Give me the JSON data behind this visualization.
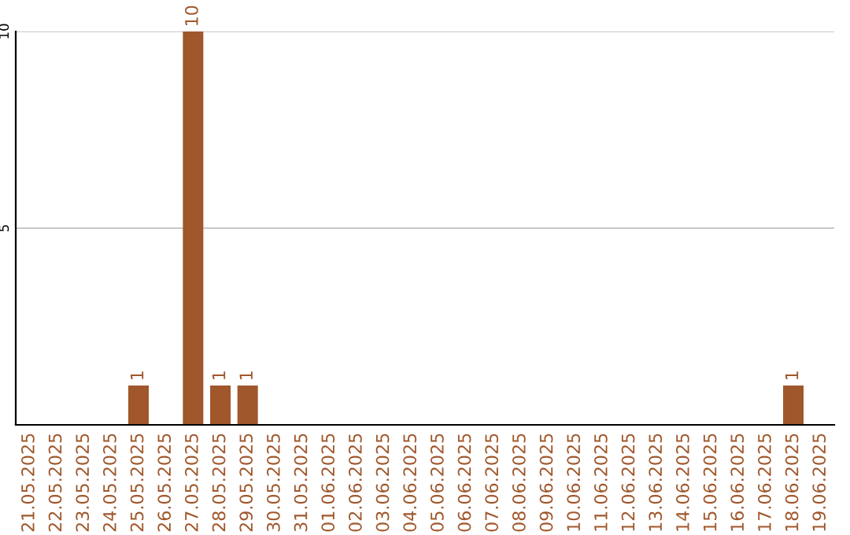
{
  "chart_data": {
    "type": "bar",
    "categories": [
      "21.05.2025",
      "22.05.2025",
      "23.05.2025",
      "24.05.2025",
      "25.05.2025",
      "26.05.2025",
      "27.05.2025",
      "28.05.2025",
      "29.05.2025",
      "30.05.2025",
      "31.05.2025",
      "01.06.2025",
      "02.06.2025",
      "03.06.2025",
      "04.06.2025",
      "05.06.2025",
      "06.06.2025",
      "07.06.2025",
      "08.06.2025",
      "09.06.2025",
      "10.06.2025",
      "11.06.2025",
      "12.06.2025",
      "13.06.2025",
      "14.06.2025",
      "15.06.2025",
      "16.06.2025",
      "17.06.2025",
      "18.06.2025",
      "19.06.2025"
    ],
    "values": [
      0,
      0,
      0,
      0,
      1,
      0,
      10,
      1,
      1,
      0,
      0,
      0,
      0,
      0,
      0,
      0,
      0,
      0,
      0,
      0,
      0,
      0,
      0,
      0,
      0,
      0,
      0,
      0,
      1,
      0
    ],
    "value_labels": [
      null,
      null,
      null,
      null,
      "1",
      null,
      "10",
      "1",
      "1",
      null,
      null,
      null,
      null,
      null,
      null,
      null,
      null,
      null,
      null,
      null,
      null,
      null,
      null,
      null,
      null,
      null,
      null,
      null,
      "1",
      null
    ],
    "color": "#a0572b",
    "ylim": [
      0,
      10
    ],
    "yticks": [
      5,
      10
    ],
    "grid": "y"
  }
}
